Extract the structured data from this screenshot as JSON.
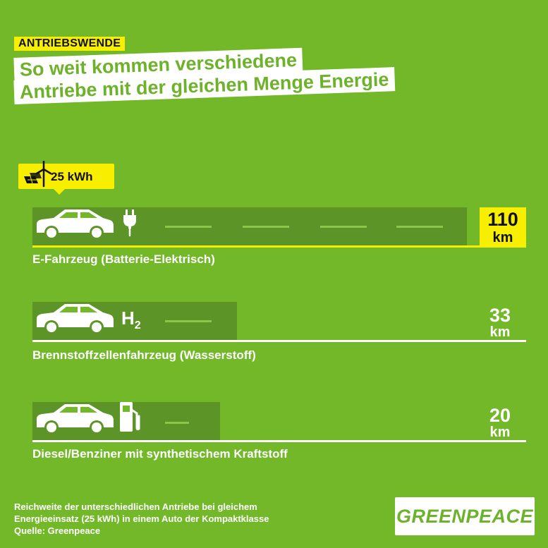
{
  "header": {
    "tag": "ANTRIEBSWENDE",
    "title_line1": "So weit kommen verschiedene",
    "title_line2": "Antriebe mit der gleichen Menge Energie"
  },
  "badge": {
    "label": "25 kWh",
    "icons": [
      "solar-panel-icon",
      "wind-turbine-icon"
    ]
  },
  "colors": {
    "background": "#73B828",
    "road": "#5C9428",
    "highlight": "#F8EE00",
    "text": "#FFFFFF",
    "logo_green": "#6DB22A"
  },
  "rows": [
    {
      "label": "E-Fahrzeug (Batterie-Elektrisch)",
      "value": "110",
      "unit": "km",
      "icon": "plug-icon"
    },
    {
      "label": "Brennstoffzellenfahrzeug (Wasserstoff)",
      "value": "33",
      "unit": "km",
      "icon": "H2"
    },
    {
      "label": "Diesel/Benziner mit synthetischem Kraftstoff",
      "value": "20",
      "unit": "km",
      "icon": "fuel-pump-icon"
    }
  ],
  "chart_data": {
    "type": "bar",
    "orientation": "horizontal",
    "categories": [
      "E-Fahrzeug (Batterie-Elektrisch)",
      "Brennstoffzellenfahrzeug (Wasserstoff)",
      "Diesel/Benziner mit synthetischem Kraftstoff"
    ],
    "values": [
      110,
      33,
      20
    ],
    "unit": "km",
    "xlim": [
      0,
      110
    ],
    "title": "So weit kommen verschiedene Antriebe mit der gleichen Menge Energie",
    "legend": "none",
    "grid": false
  },
  "footer": {
    "note_line1": "Reichweite der unterschiedlichen Antriebe bei gleichem",
    "note_line2": "Energieeinsatz (25 kWh) in einem Auto der Kompaktklasse",
    "note_line3": "Quelle: Greenpeace",
    "logo_text": "GREENPEACE"
  }
}
